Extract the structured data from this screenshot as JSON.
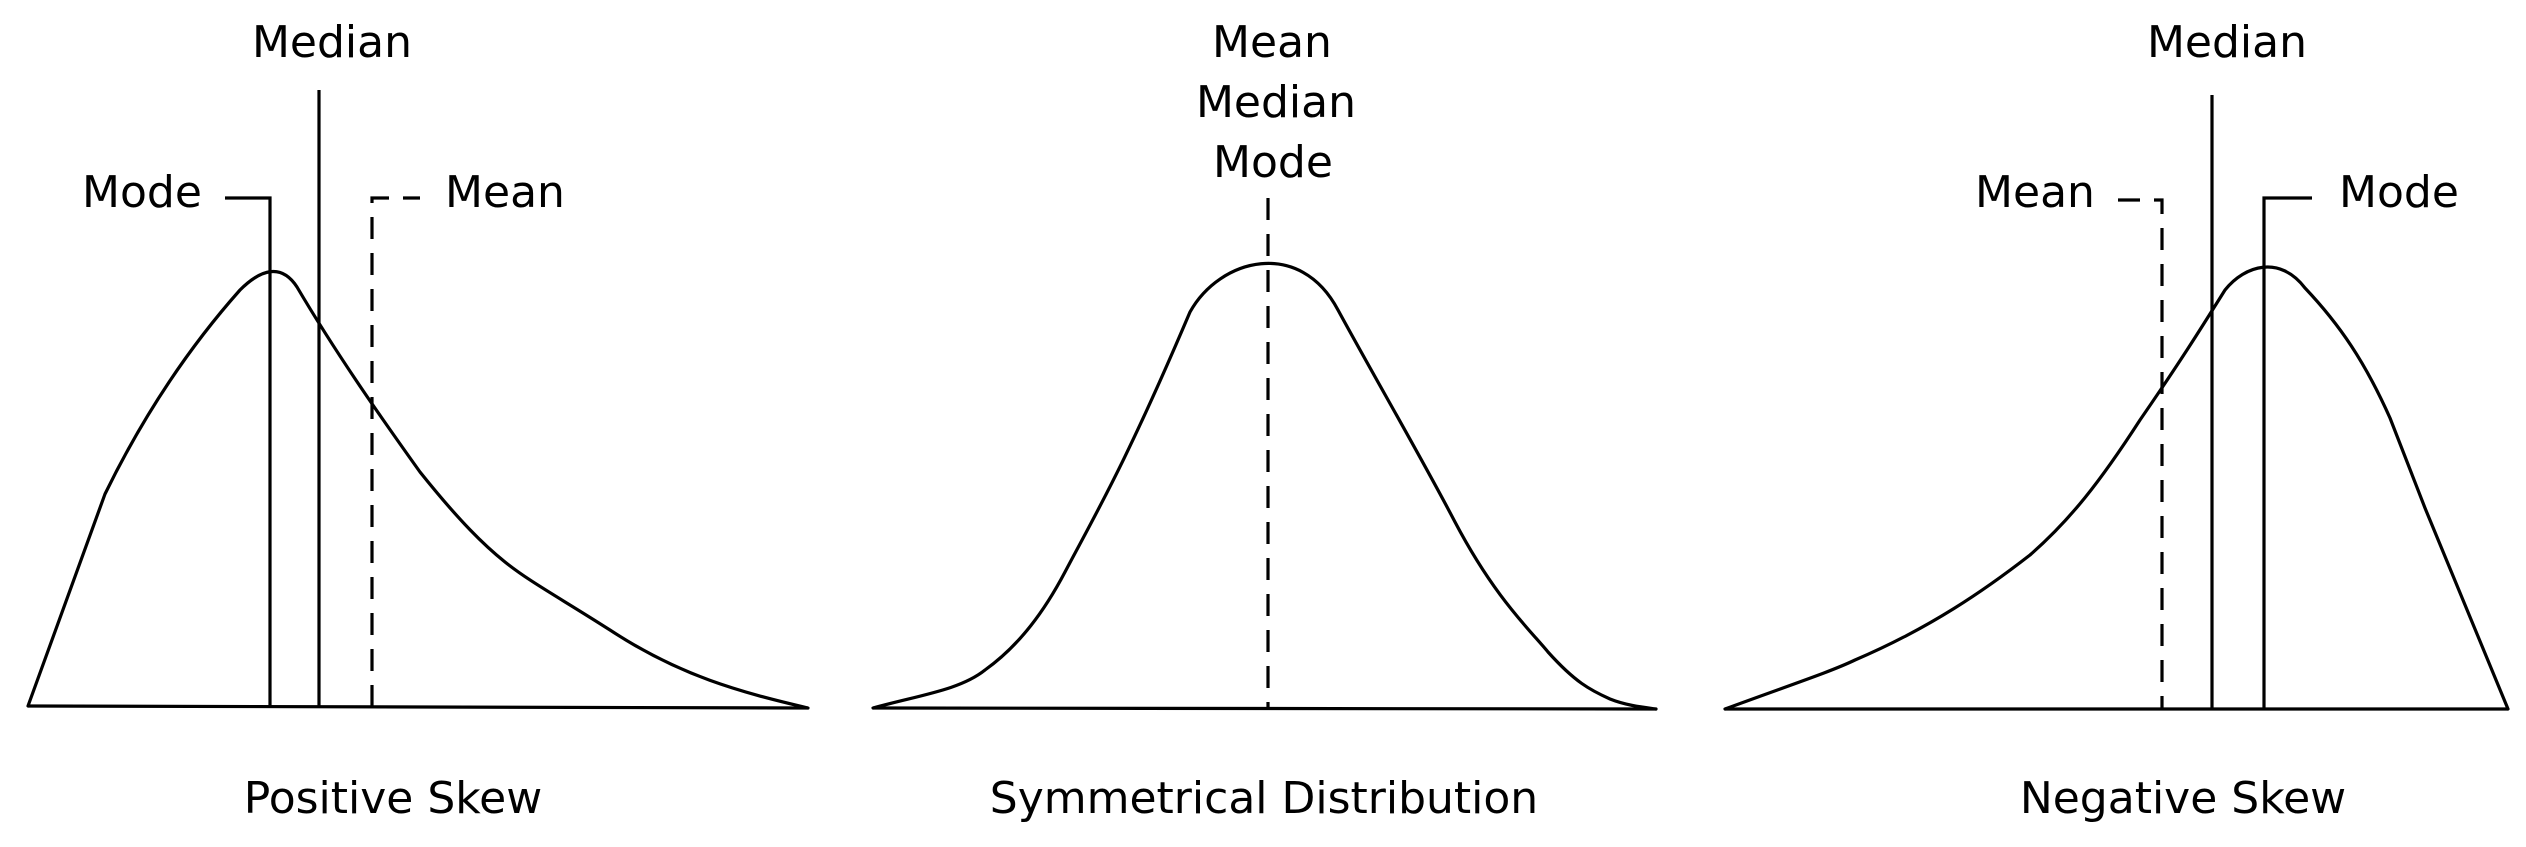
{
  "panels": [
    {
      "id": "positive",
      "caption": "Positive Skew",
      "labels": {
        "mode": "Mode",
        "median": "Median",
        "mean": "Mean"
      }
    },
    {
      "id": "symmetric",
      "caption": "Symmetrical Distribution",
      "labels": {
        "mean": "Mean",
        "median": "Median",
        "mode": "Mode"
      }
    },
    {
      "id": "negative",
      "caption": "Negative Skew",
      "labels": {
        "mean": "Mean",
        "median": "Median",
        "mode": "Mode"
      }
    }
  ],
  "colors": {
    "line": "#000000",
    "background": "#ffffff"
  }
}
